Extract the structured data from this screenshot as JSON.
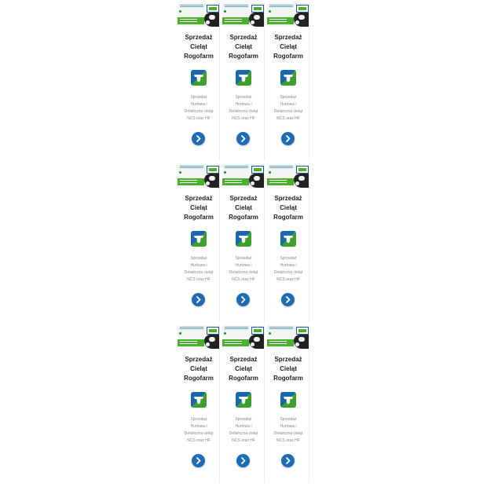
{
  "colors": {
    "button": "#1f6cb5",
    "icon_blue": "#1b66b0",
    "icon_green": "#3e9f2d",
    "banner_green": "#4caf2e"
  },
  "cards": [
    {
      "title": "Sprzedaż\nCieląt\nRogofarm",
      "description": "Sprzedaż\nHurtowa i\nDetaliczna cieląt\nNCS oraz HF",
      "icon": "cow-head-icon",
      "button_icon": "chevron-right-icon"
    },
    {
      "title": "Sprzedaż\nCieląt\nRogofarm",
      "description": "Sprzedaż\nHurtowa i\nDetaliczna cieląt\nNCS oraz HF",
      "icon": "cow-head-icon",
      "button_icon": "chevron-right-icon"
    },
    {
      "title": "Sprzedaż\nCieląt\nRogofarm",
      "description": "Sprzedaż\nHurtowa i\nDetaliczna cieląt\nNCS oraz HF",
      "icon": "cow-head-icon",
      "button_icon": "chevron-right-icon"
    },
    {
      "title": "Sprzedaż\nCieląt\nRogofarm",
      "description": "Sprzedaż\nHurtowa i\nDetaliczna cieląt\nNCS oraz HF",
      "icon": "cow-head-icon",
      "button_icon": "chevron-right-icon"
    },
    {
      "title": "Sprzedaż\nCieląt\nRogofarm",
      "description": "Sprzedaż\nHurtowa i\nDetaliczna cieląt\nNCS oraz HF",
      "icon": "cow-head-icon",
      "button_icon": "chevron-right-icon"
    },
    {
      "title": "Sprzedaż\nCieląt\nRogofarm",
      "description": "Sprzedaż\nHurtowa i\nDetaliczna cieląt\nNCS oraz HF",
      "icon": "cow-head-icon",
      "button_icon": "chevron-right-icon"
    },
    {
      "title": "Sprzedaż\nCieląt\nRogofarm",
      "description": "Sprzedaż\nHurtowa i\nDetaliczna cieląt\nNCS oraz HF",
      "icon": "cow-head-icon",
      "button_icon": "chevron-right-icon"
    },
    {
      "title": "Sprzedaż\nCieląt\nRogofarm",
      "description": "Sprzedaż\nHurtowa i\nDetaliczna cieląt\nNCS oraz HF",
      "icon": "cow-head-icon",
      "button_icon": "chevron-right-icon"
    },
    {
      "title": "Sprzedaż\nCieląt\nRogofarm",
      "description": "Sprzedaż\nHurtowa i\nDetaliczna cieląt\nNCS oraz HF",
      "icon": "cow-head-icon",
      "button_icon": "chevron-right-icon"
    }
  ]
}
